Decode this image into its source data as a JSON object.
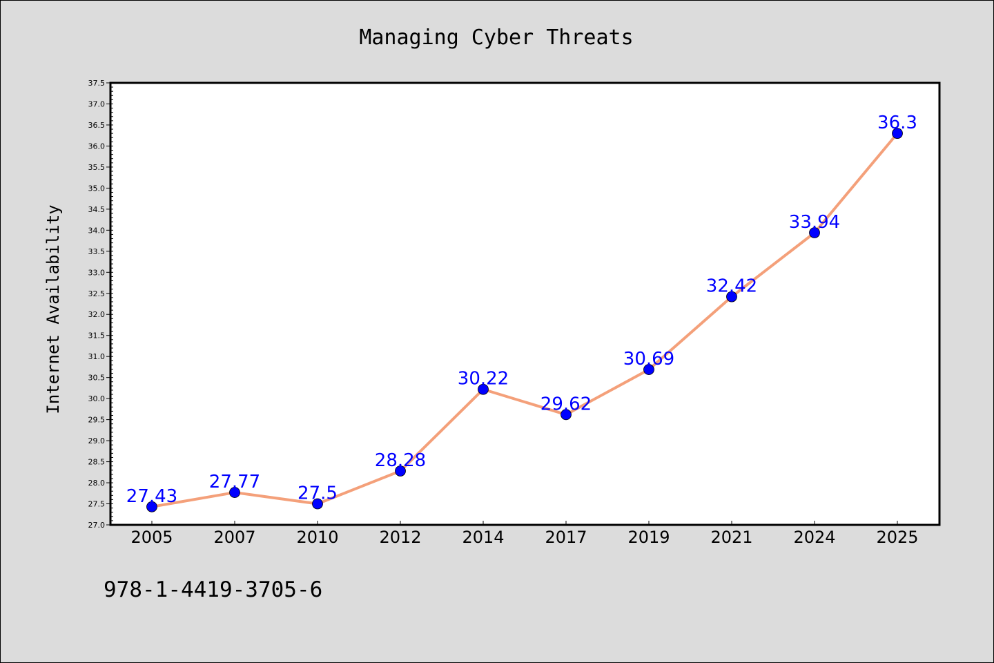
{
  "chart_data": {
    "type": "line",
    "title": "Managing Cyber Threats",
    "xlabel": "",
    "ylabel": "Internet Availability",
    "categories": [
      "2005",
      "2007",
      "2010",
      "2012",
      "2014",
      "2017",
      "2019",
      "2021",
      "2024",
      "2025"
    ],
    "series": [
      {
        "values": [
          27.43,
          27.77,
          27.5,
          28.28,
          30.22,
          29.62,
          30.69,
          32.42,
          33.94,
          36.3
        ],
        "data_labels": [
          "27.43",
          "27.77",
          "27.5",
          "28.28",
          "30.22",
          "29.62",
          "30.69",
          "32.42",
          "33.94",
          "36.3"
        ]
      }
    ],
    "ylim": [
      27.0,
      37.5
    ],
    "yticks": [
      "27.0",
      "27.5",
      "28.0",
      "28.5",
      "29.0",
      "29.5",
      "30.0",
      "30.5",
      "31.0",
      "31.5",
      "32.0",
      "32.5",
      "33.0",
      "33.5",
      "34.0",
      "34.5",
      "35.0",
      "35.5",
      "36.0",
      "36.5",
      "37.0",
      "37.5"
    ],
    "grid": false,
    "legend": "none",
    "colors": {
      "line": "#f4a07a",
      "marker": "#0000ff",
      "label": "#0000ff",
      "plot_background": "#ffffff",
      "figure_background": "#dcdcdc"
    }
  },
  "footnote": "978-1-4419-3705-6"
}
